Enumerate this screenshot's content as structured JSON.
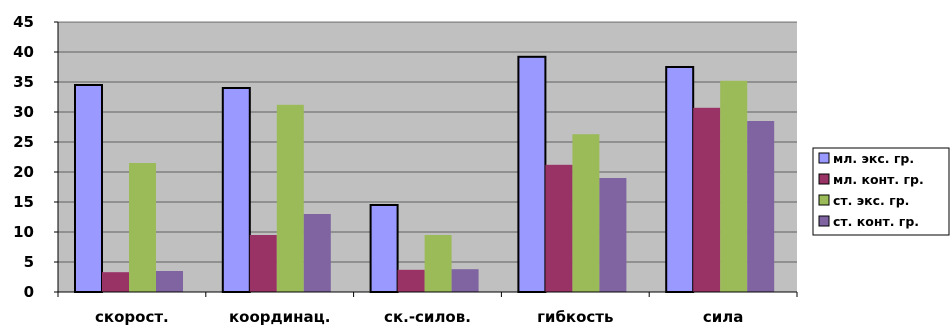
{
  "chart_data": {
    "type": "bar",
    "categories": [
      "скорост.",
      "координац.",
      "ск.-силов.",
      "гибкость",
      "сила"
    ],
    "series": [
      {
        "name": "мл. экс. гр.",
        "color": "#9999ff",
        "outlined": true,
        "values": [
          34.5,
          34.0,
          14.5,
          39.2,
          37.5
        ]
      },
      {
        "name": "мл. конт. гр.",
        "color": "#993366",
        "outlined": false,
        "values": [
          3.3,
          9.5,
          3.7,
          21.2,
          30.7
        ]
      },
      {
        "name": "ст. экс. гр.",
        "color": "#9bbb59",
        "outlined": false,
        "values": [
          21.5,
          31.2,
          9.5,
          26.3,
          35.2
        ]
      },
      {
        "name": "ст. конт. гр.",
        "color": "#8064a2",
        "outlined": false,
        "values": [
          3.5,
          13.0,
          3.8,
          19.0,
          28.5
        ]
      }
    ],
    "title": "",
    "xlabel": "",
    "ylabel": "",
    "ylim": [
      0,
      45
    ],
    "yticks": [
      0,
      5,
      10,
      15,
      20,
      25,
      30,
      35,
      40,
      45
    ],
    "grid": true,
    "plot_background": "#c0c0c0",
    "legend_position": "right"
  }
}
